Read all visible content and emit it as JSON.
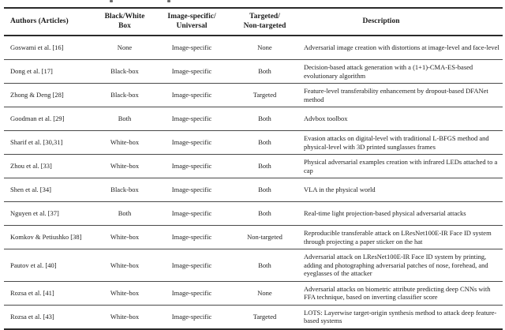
{
  "table": {
    "headers": [
      "Authors (Articles)",
      "Black/White\nBox",
      "Image-specific/\nUniversal",
      "Targeted/\nNon-targeted",
      "Description"
    ],
    "rows": [
      {
        "authors": "Goswami et al. [16]",
        "box": "None",
        "specificity": "Image-specific",
        "targeting": "None",
        "description": "Adversarial image creation with distortions at image-level and face-level"
      },
      {
        "authors": "Dong et al. [17]",
        "box": "Black-box",
        "specificity": "Image-specific",
        "targeting": "Both",
        "description": "Decision-based attack generation with a (1+1)-CMA-ES-based evolutionary algorithm"
      },
      {
        "authors": "Zhong & Deng [28]",
        "box": "Black-box",
        "specificity": "Image-specific",
        "targeting": "Targeted",
        "description": "Feature-level transferability enhancement by dropout-based DFANet method"
      },
      {
        "authors": "Goodman et al. [29]",
        "box": "Both",
        "specificity": "Image-specific",
        "targeting": "Both",
        "description": "Advbox toolbox"
      },
      {
        "authors": "Sharif et al. [30,31]",
        "box": "White-box",
        "specificity": "Image-specific",
        "targeting": "Both",
        "description": "Evasion attacks on digital-level with traditional L-BFGS method and physical-level with 3D printed sunglasses frames"
      },
      {
        "authors": "Zhou et al. [33]",
        "box": "White-box",
        "specificity": "Image-specific",
        "targeting": "Both",
        "description": "Physical adversarial examples creation with infrared LEDs attached to a cap"
      },
      {
        "authors": "Shen et al. [34]",
        "box": "Black-box",
        "specificity": "Image-specific",
        "targeting": "Both",
        "description": "VLA in the physical world"
      },
      {
        "authors": "Nguyen et al. [37]",
        "box": "Both",
        "specificity": "Image-specific",
        "targeting": "Both",
        "description": "Real-time light projection-based physical adversarial attacks"
      },
      {
        "authors": "Komkov & Petiushko [38]",
        "box": "White-box",
        "specificity": "Image-specific",
        "targeting": "Non-targeted",
        "description": "Reproducible transferable attack on LResNet100E-IR Face ID system through projecting a paper sticker on the hat"
      },
      {
        "authors": "Pautov et al. [40]",
        "box": "White-box",
        "specificity": "Image-specific",
        "targeting": "Both",
        "description": "Adversarial attack on LResNet100E-IR Face ID system by printing, adding and photographing adversarial patches of nose, forehead, and eyeglasses of the attacker"
      },
      {
        "authors": "Rozsa et al. [41]",
        "box": "White-box",
        "specificity": "Image-specific",
        "targeting": "None",
        "description": "Adversarial attacks on biometric attribute predicting deep CNNs with FFA technique, based on inverting classifier score"
      },
      {
        "authors": "Rozsa et al. [43]",
        "box": "White-box",
        "specificity": "Image-specific",
        "targeting": "Targeted",
        "description": "LOTS: Layerwise target-origin synthesis method to attack deep feature-based systems"
      }
    ]
  },
  "colors": {
    "text": "#1c1c1c",
    "rule_heavy": "#2a2a2a",
    "rule_light": "#4a4a4a",
    "background": "#ffffff"
  }
}
